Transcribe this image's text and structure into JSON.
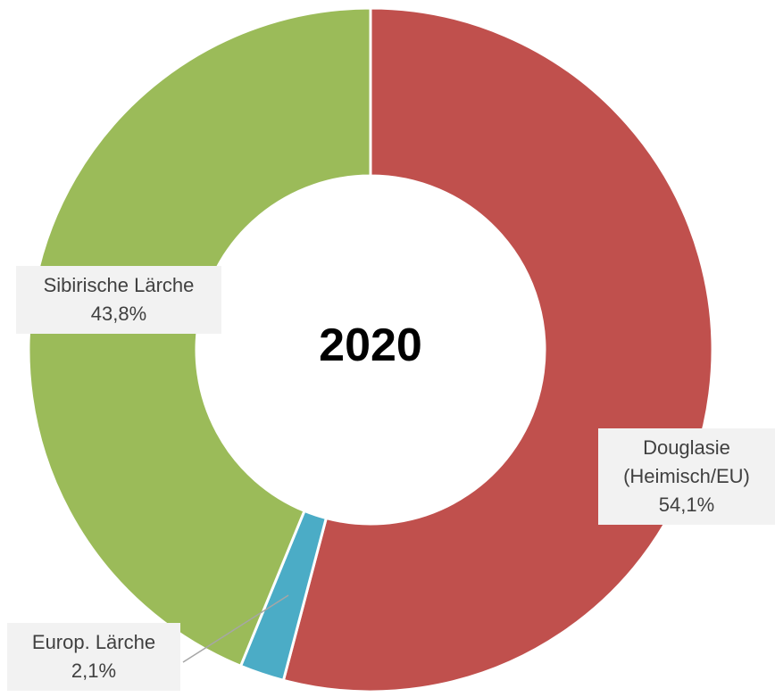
{
  "chart_data": {
    "type": "donut",
    "title": "2020",
    "categories": [
      "Douglasie (Heimisch/EU)",
      "Europ. Lärche",
      "Sibirische Lärche"
    ],
    "values": [
      54.1,
      2.1,
      43.8
    ],
    "value_labels": [
      "54,1%",
      "2,1%",
      "43,8%"
    ],
    "colors": [
      "#c0504d",
      "#4bacc6",
      "#9bbb59"
    ]
  }
}
